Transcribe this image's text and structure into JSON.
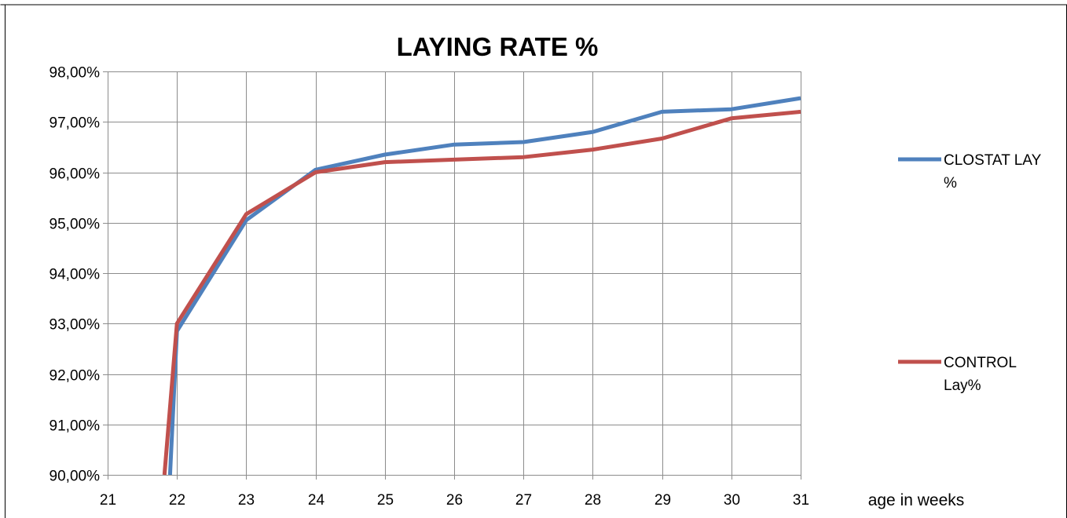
{
  "chart_data": {
    "type": "line",
    "title": "LAYING RATE %",
    "xlabel": "age in weeks",
    "ylabel": "",
    "xlim": [
      21,
      31
    ],
    "ylim": [
      90,
      98
    ],
    "x_ticks": [
      "21",
      "22",
      "23",
      "24",
      "25",
      "26",
      "27",
      "28",
      "29",
      "30",
      "31"
    ],
    "y_ticks": [
      "90,00%",
      "91,00%",
      "92,00%",
      "93,00%",
      "94,00%",
      "95,00%",
      "96,00%",
      "97,00%",
      "98,00%"
    ],
    "grid": true,
    "legend_position": "right",
    "series": [
      {
        "name_lines": [
          "CLOSTAT LAY",
          "%"
        ],
        "color": "#4F81BD",
        "points": [
          [
            21.9,
            90.0
          ],
          [
            22,
            92.85
          ],
          [
            23,
            95.05
          ],
          [
            24,
            96.05
          ],
          [
            25,
            96.35
          ],
          [
            26,
            96.55
          ],
          [
            27,
            96.6
          ],
          [
            28,
            96.8
          ],
          [
            29,
            97.2
          ],
          [
            30,
            97.25
          ],
          [
            31,
            97.47
          ]
        ]
      },
      {
        "name_lines": [
          "CONTROL",
          "Lay%"
        ],
        "color": "#C0504D",
        "points": [
          [
            21.82,
            90.0
          ],
          [
            22,
            93.0
          ],
          [
            23,
            95.17
          ],
          [
            24,
            96.0
          ],
          [
            25,
            96.2
          ],
          [
            26,
            96.25
          ],
          [
            27,
            96.3
          ],
          [
            28,
            96.45
          ],
          [
            29,
            96.67
          ],
          [
            30,
            97.07
          ],
          [
            31,
            97.2
          ]
        ]
      }
    ]
  }
}
